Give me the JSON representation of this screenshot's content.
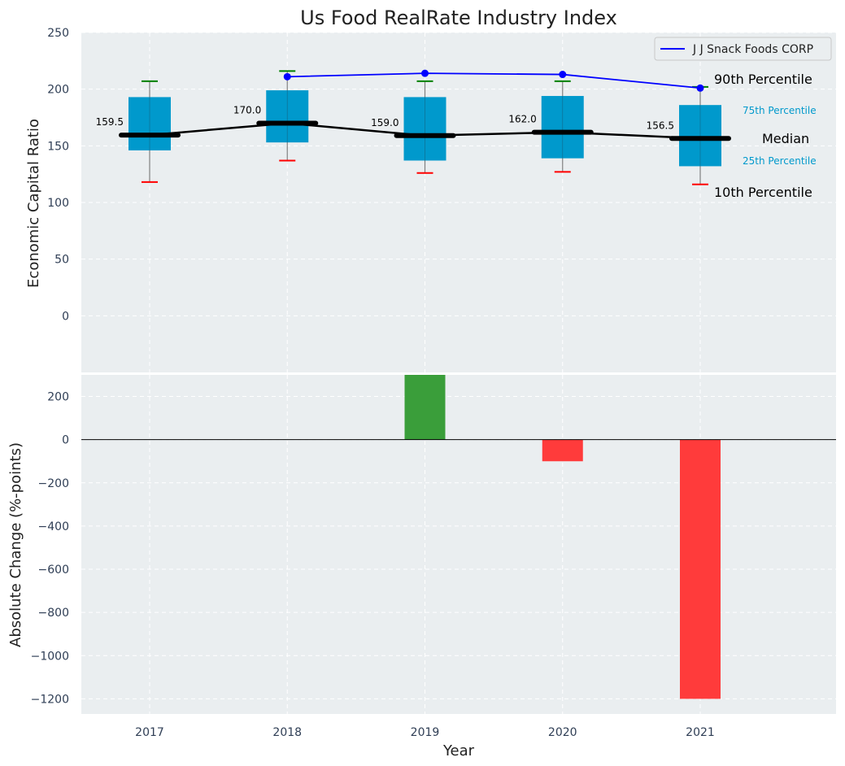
{
  "chart_data": {
    "type": "box",
    "title": "Us Food RealRate Industry Index",
    "xlabel": "Year",
    "categories": [
      "2017",
      "2018",
      "2019",
      "2020",
      "2021"
    ],
    "top_panel": {
      "ylabel": "Economic Capital Ratio",
      "ylim": [
        -50,
        250
      ],
      "yticks": [
        0,
        50,
        100,
        150,
        200,
        250
      ],
      "grid": true,
      "boxes": [
        {
          "year": "2017",
          "p10": 118,
          "p25": 146,
          "median": 159.5,
          "p75": 193,
          "p90": 207,
          "median_label": "159.5"
        },
        {
          "year": "2018",
          "p10": 137,
          "p25": 153,
          "median": 170.0,
          "p75": 199,
          "p90": 216,
          "median_label": "170.0"
        },
        {
          "year": "2019",
          "p10": 126,
          "p25": 137,
          "median": 159.0,
          "p75": 193,
          "p90": 207,
          "median_label": "159.0"
        },
        {
          "year": "2020",
          "p10": 127,
          "p25": 139,
          "median": 162.0,
          "p75": 194,
          "p90": 207,
          "median_label": "162.0"
        },
        {
          "year": "2021",
          "p10": 116,
          "p25": 132,
          "median": 156.5,
          "p75": 186,
          "p90": 202,
          "median_label": "156.5"
        }
      ],
      "company_series": {
        "name": "J J Snack Foods CORP",
        "x": [
          "2018",
          "2019",
          "2020",
          "2021"
        ],
        "values": [
          211,
          214,
          213,
          201
        ],
        "color": "#0000ff"
      },
      "legend_position": "upper-right",
      "annotations": {
        "p90": "90th Percentile",
        "p75": "75th Percentile",
        "median": "Median",
        "p25": "25th Percentile",
        "p10": "10th Percentile"
      }
    },
    "bottom_panel": {
      "type": "bar",
      "ylabel": "Absolute Change (%-points)",
      "ylim": [
        -1270,
        300
      ],
      "yticks": [
        -1200,
        -1000,
        -800,
        -600,
        -400,
        -200,
        0,
        200
      ],
      "grid": true,
      "x": [
        "2019",
        "2020",
        "2021"
      ],
      "values": [
        300,
        -100,
        -1200
      ]
    },
    "colors": {
      "box": "#0099cc",
      "median": "#000000",
      "whisker": "#808080",
      "p90_cap": "#008000",
      "p10_cap": "#ff0000",
      "bar_positive": "#3a9e3a",
      "bar_negative": "#ff3b3b",
      "background": "#eaeef0",
      "annotation_blue": "#0099cc"
    }
  }
}
